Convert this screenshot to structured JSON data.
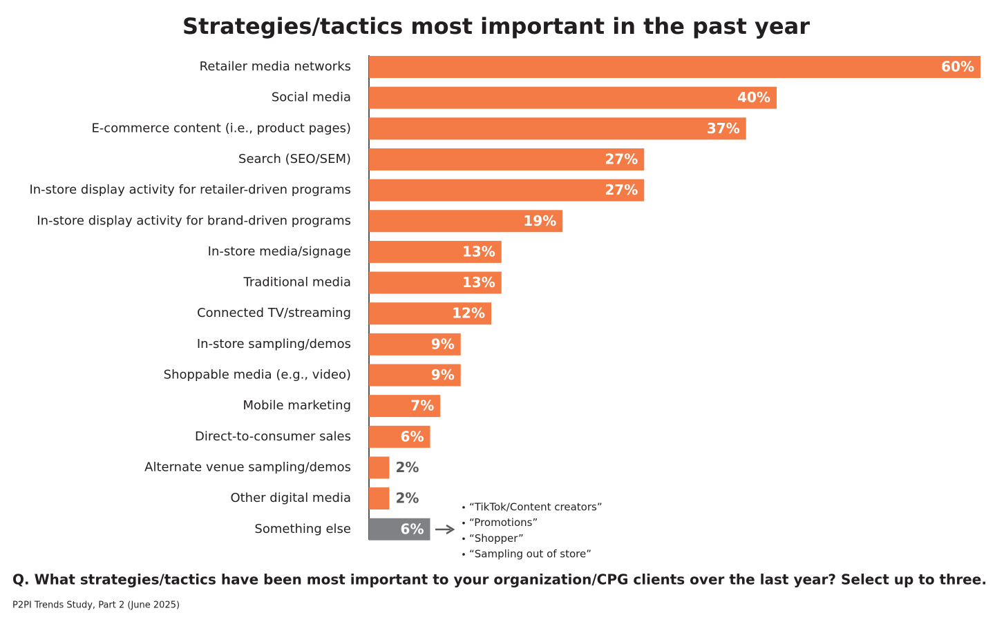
{
  "chart_data": {
    "type": "hbar",
    "title": "Strategies/tactics most important in the past year",
    "categories": [
      "Retailer media networks",
      "Social media",
      "E-commerce content (i.e., product pages)",
      "Search (SEO/SEM)",
      "In-store display activity for retailer-driven programs",
      "In-store display activity for brand-driven programs",
      "In-store media/signage",
      "Traditional media",
      "Connected TV/streaming",
      "In-store sampling/demos",
      "Shoppable media (e.g., video)",
      "Mobile marketing",
      "Direct-to-consumer sales",
      "Alternate venue sampling/demos",
      "Other digital media",
      "Something else"
    ],
    "values": [
      60,
      40,
      37,
      27,
      27,
      19,
      13,
      13,
      12,
      9,
      9,
      7,
      6,
      2,
      2,
      6
    ],
    "value_labels": [
      "60%",
      "40%",
      "37%",
      "27%",
      "27%",
      "19%",
      "13%",
      "13%",
      "12%",
      "9%",
      "9%",
      "7%",
      "6%",
      "2%",
      "2%",
      "6%"
    ],
    "colors": [
      "#f47b45",
      "#f47b45",
      "#f47b45",
      "#f47b45",
      "#f47b45",
      "#f47b45",
      "#f47b45",
      "#f47b45",
      "#f47b45",
      "#f47b45",
      "#f47b45",
      "#f47b45",
      "#f47b45",
      "#f47b45",
      "#f47b45",
      "#808184"
    ],
    "xlim": [
      0,
      60
    ],
    "annotations": [
      "“TikTok/Content creators”",
      "“Promotions”",
      "“Shopper”",
      "“Sampling out of store”"
    ],
    "question": "Q. What strategies/tactics have been most important to your organization/CPG clients over the last year? Select up to three.",
    "source": "P2PI Trends Study, Part 2 (June 2025)"
  }
}
